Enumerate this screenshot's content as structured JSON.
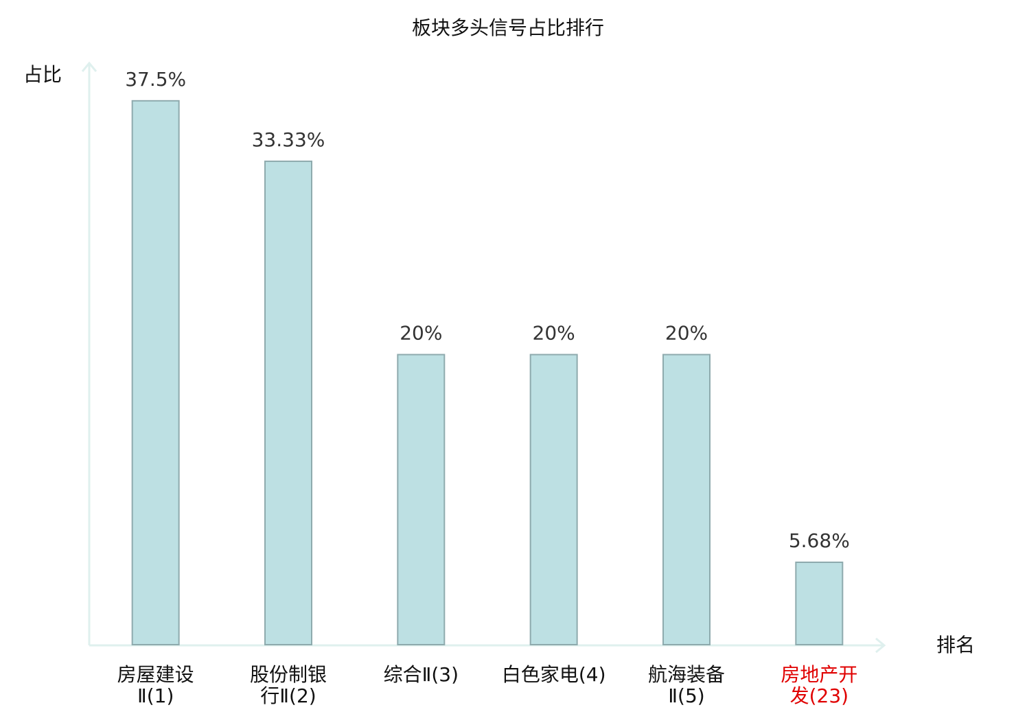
{
  "chart_data": {
    "type": "bar",
    "title": "板块多头信号占比排行",
    "y_label": "占比",
    "x_label": "排名",
    "categories": [
      [
        "房屋建设",
        "Ⅱ(1)"
      ],
      [
        "股份制银",
        "行Ⅱ(2)"
      ],
      [
        "综合Ⅱ(3)"
      ],
      [
        "白色家电(4)"
      ],
      [
        "航海装备",
        "Ⅱ(5)"
      ],
      [
        "房地产开",
        "发(23)"
      ]
    ],
    "label_colors": [
      "#111111",
      "#111111",
      "#111111",
      "#111111",
      "#111111",
      "#e00000"
    ],
    "values": [
      37.5,
      33.33,
      20,
      20,
      20,
      5.68
    ],
    "value_labels": [
      "37.5%",
      "33.33%",
      "20%",
      "20%",
      "20%",
      "5.68%"
    ],
    "color": "#bde0e3",
    "ylim": [
      0,
      40
    ]
  }
}
